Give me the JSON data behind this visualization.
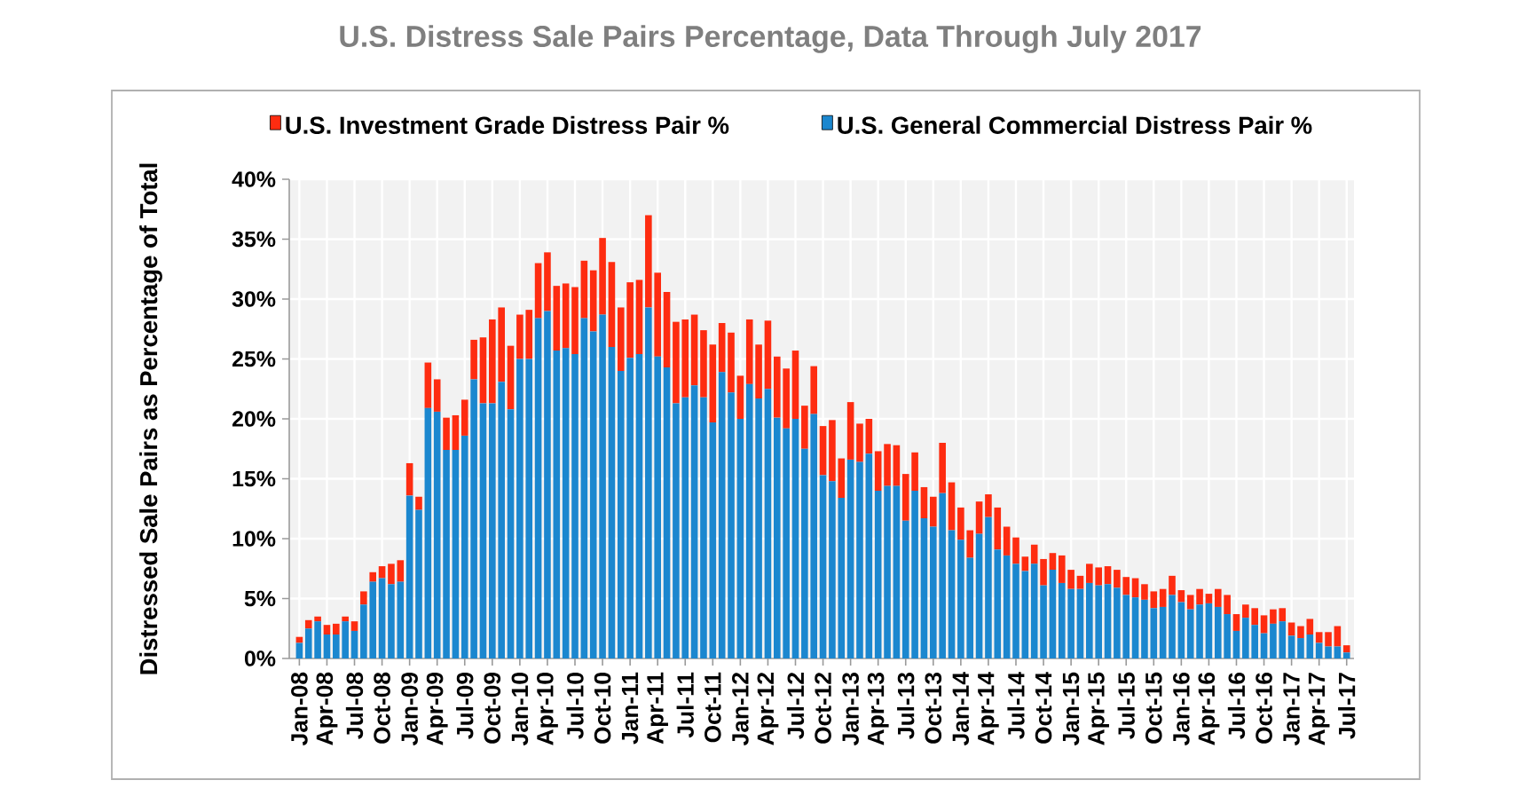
{
  "chart_data": {
    "type": "bar",
    "title": "U.S. Distress Sale Pairs Percentage, Data Through July 2017",
    "ylabel": "Distressed Sale Pairs as Percentage of Total",
    "categories": [
      "Jan-08",
      null,
      null,
      "Apr-08",
      null,
      null,
      "Jul-08",
      null,
      null,
      "Oct-08",
      null,
      null,
      "Jan-09",
      null,
      null,
      "Apr-09",
      null,
      null,
      "Jul-09",
      null,
      null,
      "Oct-09",
      null,
      null,
      "Jan-10",
      null,
      null,
      "Apr-10",
      null,
      null,
      "Jul-10",
      null,
      null,
      "Oct-10",
      null,
      null,
      "Jan-11",
      null,
      null,
      "Apr-11",
      null,
      null,
      "Jul-11",
      null,
      null,
      "Oct-11",
      null,
      null,
      "Jan-12",
      null,
      null,
      "Apr-12",
      null,
      null,
      "Jul-12",
      null,
      null,
      "Oct-12",
      null,
      null,
      "Jan-13",
      null,
      null,
      "Apr-13",
      null,
      null,
      "Jul-13",
      null,
      null,
      "Oct-13",
      null,
      null,
      "Jan-14",
      null,
      null,
      "Apr-14",
      null,
      null,
      "Jul-14",
      null,
      null,
      "Oct-14",
      null,
      null,
      "Jan-15",
      null,
      null,
      "Apr-15",
      null,
      null,
      "Jul-15",
      null,
      null,
      "Oct-15",
      null,
      null,
      "Jan-16",
      null,
      null,
      "Apr-16",
      null,
      null,
      "Jul-16",
      null,
      null,
      "Oct-16",
      null,
      null,
      "Jan-17",
      null,
      null,
      "Apr-17",
      null,
      null,
      "Jul-17"
    ],
    "series": [
      {
        "name": "U.S. General Commercial Distress Pair %",
        "color": "#1b87cf",
        "values": [
          1.3,
          2.5,
          3.1,
          2.0,
          2.0,
          3.1,
          2.3,
          4.5,
          6.4,
          6.7,
          6.2,
          6.4,
          13.6,
          12.4,
          20.9,
          20.6,
          17.4,
          17.4,
          18.6,
          23.3,
          21.3,
          21.3,
          23.1,
          20.8,
          25.0,
          25.0,
          28.4,
          29.0,
          25.7,
          25.9,
          25.4,
          28.4,
          27.3,
          28.7,
          26.0,
          24.0,
          25.1,
          25.4,
          29.3,
          25.2,
          24.3,
          21.3,
          21.8,
          22.8,
          21.8,
          19.7,
          23.9,
          22.2,
          20.0,
          22.9,
          21.7,
          22.5,
          20.1,
          19.2,
          20.0,
          17.5,
          20.4,
          15.3,
          14.8,
          13.4,
          16.6,
          16.4,
          17.1,
          14.0,
          14.4,
          14.4,
          11.5,
          14.0,
          11.7,
          11.0,
          13.8,
          10.7,
          9.9,
          8.4,
          10.4,
          11.8,
          9.1,
          8.6,
          7.9,
          7.3,
          7.9,
          6.1,
          7.4,
          6.3,
          5.8,
          5.8,
          6.3,
          6.1,
          6.2,
          5.9,
          5.3,
          5.1,
          4.9,
          4.2,
          4.3,
          5.3,
          4.7,
          4.1,
          4.5,
          4.6,
          4.3,
          3.7,
          2.3,
          3.4,
          2.8,
          2.1,
          2.9,
          3.1,
          1.9,
          1.7,
          2.0,
          1.3,
          1.0,
          1.0,
          0.5
        ]
      },
      {
        "name": "U.S. Investment Grade Distress Pair %",
        "color": "#fe2c10",
        "values": [
          0.5,
          0.7,
          0.4,
          0.8,
          0.9,
          0.4,
          0.8,
          1.1,
          0.8,
          1.0,
          1.7,
          1.8,
          2.7,
          1.1,
          3.8,
          2.7,
          2.7,
          2.9,
          3.0,
          3.3,
          5.5,
          7.0,
          6.2,
          5.3,
          3.7,
          4.1,
          4.6,
          4.9,
          5.4,
          5.4,
          5.6,
          4.8,
          5.1,
          6.4,
          7.1,
          5.3,
          6.3,
          6.2,
          7.7,
          7.0,
          6.3,
          6.8,
          6.5,
          5.9,
          5.6,
          6.5,
          4.1,
          5.0,
          3.6,
          5.4,
          4.5,
          5.7,
          5.1,
          5.0,
          5.7,
          3.6,
          4.0,
          4.1,
          5.1,
          3.3,
          4.8,
          3.2,
          2.9,
          3.3,
          3.5,
          3.4,
          3.9,
          3.2,
          2.6,
          2.5,
          4.2,
          4.0,
          2.7,
          2.3,
          2.7,
          1.9,
          3.5,
          2.4,
          2.2,
          1.2,
          1.6,
          2.2,
          1.4,
          2.3,
          1.6,
          1.1,
          1.6,
          1.5,
          1.5,
          1.5,
          1.5,
          1.6,
          1.3,
          1.4,
          1.5,
          1.6,
          1.0,
          1.2,
          1.3,
          0.8,
          1.5,
          1.6,
          1.4,
          1.1,
          1.4,
          1.5,
          1.2,
          1.1,
          1.1,
          1.0,
          1.3,
          0.9,
          1.2,
          1.7,
          0.6
        ]
      }
    ],
    "stacked": true,
    "ylim": [
      0,
      40
    ],
    "yticks": [
      {
        "value": 0,
        "label": "0%"
      },
      {
        "value": 5,
        "label": "5%"
      },
      {
        "value": 10,
        "label": "10%"
      },
      {
        "value": 15,
        "label": "15%"
      },
      {
        "value": 20,
        "label": "20%"
      },
      {
        "value": 25,
        "label": "25%"
      },
      {
        "value": 30,
        "label": "30%"
      },
      {
        "value": 35,
        "label": "35%"
      },
      {
        "value": 40,
        "label": "40%"
      }
    ],
    "grid": true,
    "legend": "top"
  }
}
